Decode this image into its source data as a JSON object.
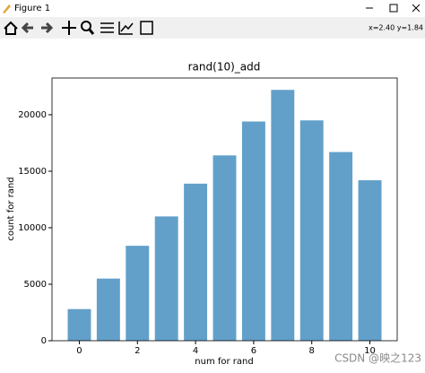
{
  "window": {
    "title": "Figure 1",
    "status": "x=2.40 y=1.84"
  },
  "chart_data": {
    "type": "bar",
    "title": "rand(10)_add",
    "x_label": "num for rand",
    "y_label": "count for rand",
    "x": [
      0,
      1,
      2,
      3,
      4,
      5,
      6,
      7,
      8,
      9,
      10
    ],
    "values": [
      2800,
      5500,
      8400,
      11000,
      13900,
      16400,
      19400,
      22200,
      19500,
      16700,
      14200
    ],
    "color": "#62a0ca",
    "xlim": [
      -0.94,
      10.94
    ],
    "xticks": [
      0,
      2,
      4,
      6,
      8,
      10
    ],
    "ylim": [
      0,
      23250
    ],
    "yticks": [
      0,
      5000,
      10000,
      15000,
      20000
    ],
    "grid": false
  },
  "watermark": "CSDN @映之123"
}
